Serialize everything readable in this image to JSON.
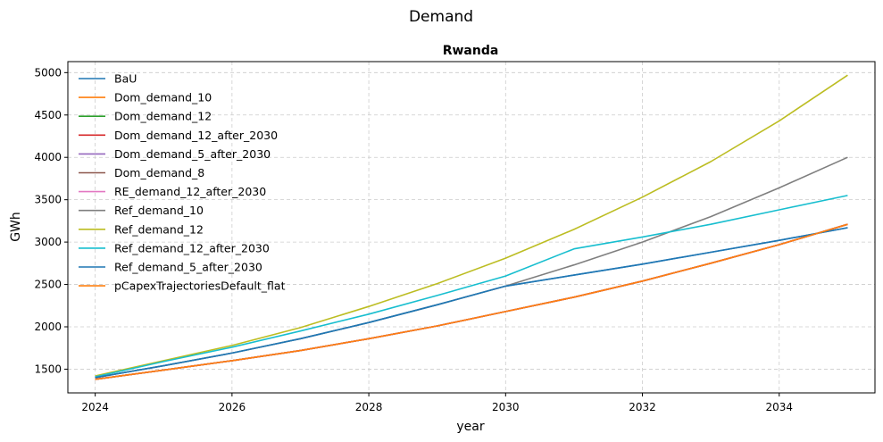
{
  "chart_data": {
    "type": "line",
    "suptitle": "Demand",
    "title": "Rwanda",
    "xlabel": "year",
    "ylabel": "GWh",
    "xlim": [
      2023.6,
      2035.4
    ],
    "ylim": [
      1220,
      5130
    ],
    "xticks": [
      2024,
      2026,
      2028,
      2030,
      2032,
      2034
    ],
    "yticks": [
      1500,
      2000,
      2500,
      3000,
      3500,
      4000,
      4500,
      5000
    ],
    "grid": true,
    "legend_position": "upper-left",
    "x": [
      2024,
      2025,
      2026,
      2027,
      2028,
      2029,
      2030,
      2031,
      2032,
      2033,
      2034,
      2035
    ],
    "series": [
      {
        "name": "BaU",
        "color": "#1f77b4",
        "values": [
          1400,
          1540,
          1690,
          1860,
          2050,
          2260,
          2480,
          2610,
          2740,
          2880,
          3020,
          3170
        ]
      },
      {
        "name": "Dom_demand_10",
        "color": "#ff7f0e",
        "values": [
          1380,
          1490,
          1600,
          1720,
          1860,
          2010,
          2180,
          2350,
          2540,
          2750,
          2970,
          3210
        ]
      },
      {
        "name": "Dom_demand_12",
        "color": "#2ca02c",
        "values": [
          1380,
          1490,
          1600,
          1720,
          1860,
          2010,
          2180,
          2350,
          2540,
          2750,
          2970,
          3210
        ]
      },
      {
        "name": "Dom_demand_12_after_2030",
        "color": "#d62728",
        "values": [
          1380,
          1490,
          1600,
          1720,
          1860,
          2010,
          2180,
          2350,
          2540,
          2750,
          2970,
          3210
        ]
      },
      {
        "name": "Dom_demand_5_after_2030",
        "color": "#9467bd",
        "values": [
          1380,
          1490,
          1600,
          1720,
          1860,
          2010,
          2180,
          2350,
          2540,
          2750,
          2970,
          3210
        ]
      },
      {
        "name": "Dom_demand_8",
        "color": "#8c564b",
        "values": [
          1380,
          1490,
          1600,
          1720,
          1860,
          2010,
          2180,
          2350,
          2540,
          2750,
          2970,
          3210
        ]
      },
      {
        "name": "RE_demand_12_after_2030",
        "color": "#e377c2",
        "values": [
          1380,
          1490,
          1600,
          1720,
          1860,
          2010,
          2180,
          2350,
          2540,
          2750,
          2970,
          3210
        ]
      },
      {
        "name": "Ref_demand_10",
        "color": "#7f7f7f",
        "values": [
          1400,
          1540,
          1690,
          1860,
          2050,
          2260,
          2480,
          2730,
          3000,
          3300,
          3640,
          4000
        ]
      },
      {
        "name": "Ref_demand_12",
        "color": "#bcbd22",
        "values": [
          1420,
          1600,
          1780,
          1990,
          2240,
          2510,
          2810,
          3150,
          3530,
          3950,
          4430,
          4970
        ]
      },
      {
        "name": "Ref_demand_12_after_2030",
        "color": "#17becf",
        "values": [
          1410,
          1590,
          1760,
          1950,
          2150,
          2370,
          2600,
          2920,
          3060,
          3210,
          3380,
          3550
        ]
      },
      {
        "name": "Ref_demand_5_after_2030",
        "color": "#1f77b4",
        "values": [
          1400,
          1540,
          1690,
          1860,
          2050,
          2260,
          2480,
          2610,
          2740,
          2880,
          3020,
          3170
        ]
      },
      {
        "name": "pCapexTrajectoriesDefault_flat",
        "color": "#ff7f0e",
        "values": [
          1380,
          1490,
          1600,
          1720,
          1860,
          2010,
          2180,
          2350,
          2540,
          2750,
          2970,
          3210
        ]
      }
    ]
  }
}
